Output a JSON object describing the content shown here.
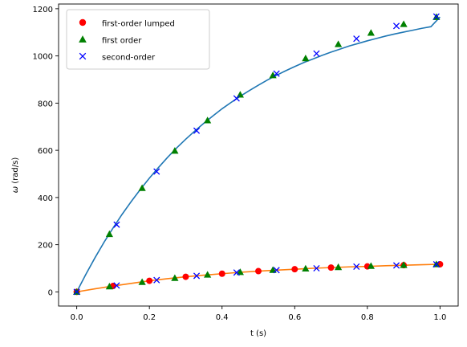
{
  "chart_data": {
    "type": "scatter",
    "xlabel": "t (s)",
    "ylabel_symbol": "ω",
    "ylabel_unit": " (rad/s)",
    "xlim": [
      -0.05,
      1.05
    ],
    "ylim": [
      -60,
      1220
    ],
    "xticks": [
      0.0,
      0.2,
      0.4,
      0.6,
      0.8,
      1.0
    ],
    "xtick_labels": [
      "0.0",
      "0.2",
      "0.4",
      "0.6",
      "0.8",
      "1.0"
    ],
    "yticks": [
      0,
      200,
      400,
      600,
      800,
      1000,
      1200
    ],
    "ytick_labels": [
      "0",
      "200",
      "400",
      "600",
      "800",
      "1000",
      "1200"
    ],
    "grid": false,
    "legend_position": "top-left",
    "lines": [
      {
        "color": "#1f77b4",
        "x": [
          0,
          0.025,
          0.05,
          0.075,
          0.1,
          0.125,
          0.15,
          0.175,
          0.2,
          0.225,
          0.25,
          0.275,
          0.3,
          0.325,
          0.35,
          0.375,
          0.4,
          0.425,
          0.45,
          0.475,
          0.5,
          0.525,
          0.55,
          0.575,
          0.6,
          0.625,
          0.65,
          0.675,
          0.7,
          0.725,
          0.75,
          0.775,
          0.8,
          0.825,
          0.85,
          0.875,
          0.9,
          0.925,
          0.95,
          0.975,
          1.0
        ],
        "y": [
          0,
          74,
          144,
          210,
          271,
          329,
          383,
          434,
          482,
          527,
          570,
          610,
          647,
          682,
          715,
          746,
          776,
          803,
          829,
          853,
          876,
          898,
          918,
          937,
          955,
          972,
          987,
          1002,
          1016,
          1029,
          1042,
          1053,
          1064,
          1074,
          1084,
          1093,
          1101,
          1109,
          1117,
          1124,
          1165
        ]
      },
      {
        "color": "#ff7f0e",
        "x": [
          0,
          0.05,
          0.1,
          0.15,
          0.2,
          0.25,
          0.3,
          0.35,
          0.4,
          0.45,
          0.5,
          0.55,
          0.6,
          0.65,
          0.7,
          0.75,
          0.8,
          0.85,
          0.9,
          0.95,
          1.0
        ],
        "y": [
          0,
          13,
          25,
          36,
          47,
          56,
          64,
          71,
          77,
          83,
          88,
          92,
          96,
          100,
          103,
          106,
          108,
          111,
          113,
          115,
          117
        ]
      }
    ],
    "series": [
      {
        "name": "first-order lumped",
        "marker": "circle",
        "color": "#ff0000",
        "points": [
          [
            0.0,
            0
          ],
          [
            0.1,
            25
          ],
          [
            0.2,
            47
          ],
          [
            0.3,
            64
          ],
          [
            0.4,
            77
          ],
          [
            0.5,
            88
          ],
          [
            0.6,
            96
          ],
          [
            0.7,
            103
          ],
          [
            0.8,
            108
          ],
          [
            0.9,
            113
          ],
          [
            1.0,
            117
          ]
        ]
      },
      {
        "name": "first order",
        "marker": "triangle",
        "color": "#008000",
        "points": [
          [
            0.0,
            0
          ],
          [
            0.09,
            245
          ],
          [
            0.18,
            440
          ],
          [
            0.27,
            598
          ],
          [
            0.36,
            727
          ],
          [
            0.45,
            836
          ],
          [
            0.54,
            918
          ],
          [
            0.63,
            990
          ],
          [
            0.72,
            1050
          ],
          [
            0.81,
            1098
          ],
          [
            0.9,
            1135
          ],
          [
            0.99,
            1165
          ],
          [
            0.09,
            23
          ],
          [
            0.18,
            42
          ],
          [
            0.27,
            59
          ],
          [
            0.36,
            73
          ],
          [
            0.45,
            84
          ],
          [
            0.54,
            93
          ],
          [
            0.63,
            99
          ],
          [
            0.72,
            105
          ],
          [
            0.81,
            110
          ],
          [
            0.9,
            114
          ],
          [
            0.99,
            117
          ]
        ]
      },
      {
        "name": "second-order",
        "marker": "x",
        "color": "#0000ff",
        "points": [
          [
            0.0,
            0
          ],
          [
            0.11,
            285
          ],
          [
            0.22,
            510
          ],
          [
            0.33,
            683
          ],
          [
            0.44,
            820
          ],
          [
            0.55,
            925
          ],
          [
            0.66,
            1010
          ],
          [
            0.77,
            1073
          ],
          [
            0.88,
            1127
          ],
          [
            0.99,
            1167
          ],
          [
            0.11,
            27
          ],
          [
            0.22,
            50
          ],
          [
            0.33,
            68
          ],
          [
            0.44,
            82
          ],
          [
            0.55,
            92
          ],
          [
            0.66,
            100
          ],
          [
            0.77,
            107
          ],
          [
            0.88,
            112
          ],
          [
            0.99,
            117
          ]
        ]
      }
    ]
  }
}
